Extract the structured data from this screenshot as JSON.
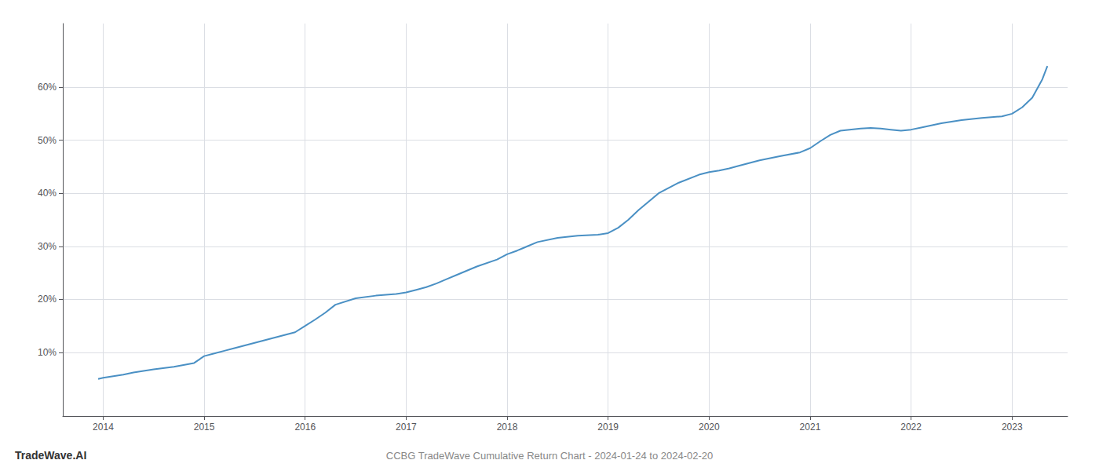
{
  "chart_data": {
    "type": "line",
    "title": "CCBG TradeWave Cumulative Return Chart - 2024-01-24 to 2024-02-20",
    "annotations": [
      "TradeWave.AI"
    ],
    "color": "#4a90c4",
    "grid": true,
    "xlim": [
      2013.6,
      2023.55
    ],
    "xticks": [
      2014,
      2015,
      2016,
      2017,
      2018,
      2019,
      2020,
      2021,
      2022,
      2023
    ],
    "ylim": [
      -0.02,
      0.72
    ],
    "yticks": [
      {
        "value": 0.1,
        "label": "10%"
      },
      {
        "value": 0.2,
        "label": "20%"
      },
      {
        "value": 0.3,
        "label": "30%"
      },
      {
        "value": 0.4,
        "label": "40%"
      },
      {
        "value": 0.5,
        "label": "50%"
      },
      {
        "value": 0.6,
        "label": "60%"
      }
    ],
    "x": [
      2013.95,
      2014.0,
      2014.1,
      2014.2,
      2014.3,
      2014.5,
      2014.7,
      2014.9,
      2015.0,
      2015.1,
      2015.2,
      2015.3,
      2015.5,
      2015.7,
      2015.9,
      2016.0,
      2016.1,
      2016.2,
      2016.3,
      2016.5,
      2016.7,
      2016.9,
      2017.0,
      2017.1,
      2017.2,
      2017.3,
      2017.4,
      2017.5,
      2017.7,
      2017.9,
      2018.0,
      2018.1,
      2018.15,
      2018.2,
      2018.3,
      2018.5,
      2018.7,
      2018.9,
      2019.0,
      2019.1,
      2019.2,
      2019.3,
      2019.5,
      2019.7,
      2019.9,
      2020.0,
      2020.1,
      2020.2,
      2020.3,
      2020.5,
      2020.7,
      2020.9,
      2021.0,
      2021.1,
      2021.2,
      2021.3,
      2021.5,
      2021.6,
      2021.7,
      2021.8,
      2021.9,
      2022.0,
      2022.1,
      2022.2,
      2022.3,
      2022.5,
      2022.7,
      2022.9,
      2023.0,
      2023.1,
      2023.2,
      2023.3,
      2023.35
    ],
    "values": [
      0.05,
      0.052,
      0.055,
      0.058,
      0.062,
      0.068,
      0.073,
      0.08,
      0.093,
      0.098,
      0.103,
      0.108,
      0.118,
      0.128,
      0.138,
      0.15,
      0.162,
      0.175,
      0.19,
      0.202,
      0.207,
      0.21,
      0.213,
      0.218,
      0.223,
      0.23,
      0.238,
      0.246,
      0.262,
      0.275,
      0.285,
      0.292,
      0.296,
      0.3,
      0.308,
      0.316,
      0.32,
      0.322,
      0.325,
      0.335,
      0.35,
      0.368,
      0.4,
      0.42,
      0.435,
      0.44,
      0.443,
      0.447,
      0.452,
      0.462,
      0.47,
      0.477,
      0.485,
      0.498,
      0.51,
      0.518,
      0.522,
      0.523,
      0.522,
      0.52,
      0.518,
      0.52,
      0.524,
      0.528,
      0.532,
      0.538,
      0.542,
      0.545,
      0.55,
      0.562,
      0.58,
      0.615,
      0.64
    ]
  }
}
